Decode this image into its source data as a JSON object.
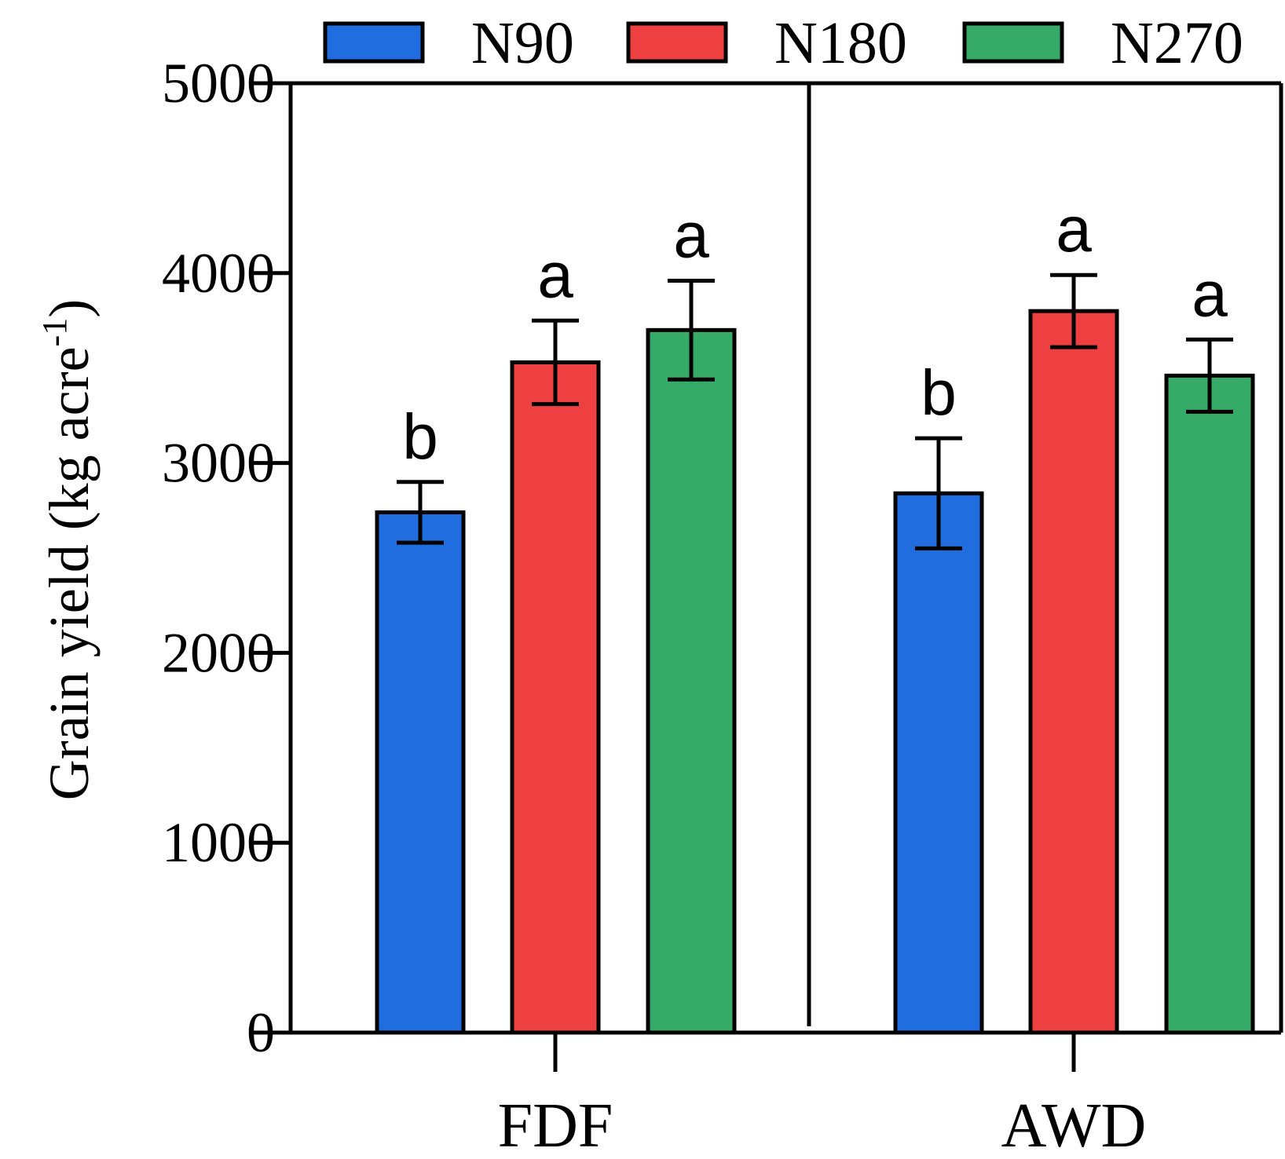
{
  "chart_data": {
    "type": "bar",
    "title": "",
    "xlabel": "",
    "ylabel_main": "Grain yield  (kg acre",
    "ylabel_sup": "-1",
    "ylabel_tail": ")",
    "ylim": [
      0,
      5000
    ],
    "y_ticks": [
      "0",
      "1000",
      "2000",
      "3000",
      "4000",
      "5000"
    ],
    "y_tick_values": [
      0,
      1000,
      2000,
      3000,
      4000,
      5000
    ],
    "categories": [
      "FDF",
      "AWD"
    ],
    "legend_position": "top",
    "grid": false,
    "series": [
      {
        "name": "N90",
        "color": "#1f6ddf",
        "values": [
          2740,
          2840
        ],
        "errors": [
          160,
          290
        ],
        "letters": [
          "b",
          "b"
        ]
      },
      {
        "name": "N180",
        "color": "#ee4040",
        "values": [
          3530,
          3800
        ],
        "errors": [
          220,
          190
        ],
        "letters": [
          "a",
          "a"
        ]
      },
      {
        "name": "N270",
        "color": "#36ab68",
        "values": [
          3700,
          3460
        ],
        "errors": [
          260,
          190
        ],
        "letters": [
          "a",
          "a"
        ]
      }
    ]
  }
}
